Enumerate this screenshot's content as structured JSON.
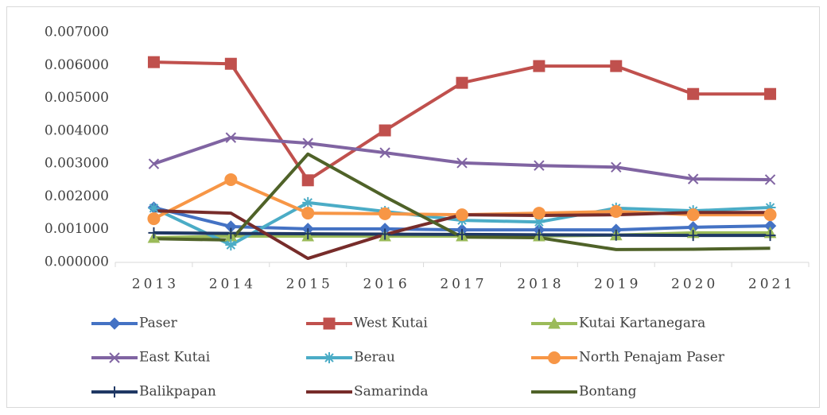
{
  "chart_data": {
    "type": "line",
    "categories": [
      "2013",
      "2014",
      "2015",
      "2016",
      "2017",
      "2018",
      "2019",
      "2020",
      "2021"
    ],
    "ylim": [
      0,
      0.007
    ],
    "yticks": [
      {
        "value": 0,
        "label": "0.000000"
      },
      {
        "value": 0.001,
        "label": "0.001000"
      },
      {
        "value": 0.002,
        "label": "0.002000"
      },
      {
        "value": 0.003,
        "label": "0.003000"
      },
      {
        "value": 0.004,
        "label": "0.004000"
      },
      {
        "value": 0.005,
        "label": "0.005000"
      },
      {
        "value": 0.006,
        "label": "0.006000"
      },
      {
        "value": 0.007,
        "label": "0.007000"
      }
    ],
    "grid": false,
    "legend": "bottom",
    "series": [
      {
        "name": "Paser",
        "color": "#4472c4",
        "marker": "diamond",
        "values": [
          0.00167,
          0.00109,
          0.00102,
          0.00102,
          0.00099,
          0.00099,
          0.00099,
          0.00107,
          0.00111
        ]
      },
      {
        "name": "West Kutai",
        "color": "#c0504d",
        "marker": "square",
        "values": [
          0.0061,
          0.00605,
          0.0025,
          0.00402,
          0.00547,
          0.00598,
          0.00598,
          0.00513,
          0.00513
        ]
      },
      {
        "name": "Kutai Kartanegara",
        "color": "#9bbb59",
        "marker": "triangle",
        "values": [
          0.00075,
          0.0008,
          0.0008,
          0.0008,
          0.0008,
          0.0008,
          0.00083,
          0.0009,
          0.0009
        ]
      },
      {
        "name": "East Kutai",
        "color": "#8064a2",
        "marker": "x",
        "values": [
          0.003,
          0.0038,
          0.00363,
          0.00334,
          0.00303,
          0.00295,
          0.0029,
          0.00254,
          0.00252
        ]
      },
      {
        "name": "Berau",
        "color": "#4bacc6",
        "marker": "star",
        "values": [
          0.00165,
          0.00053,
          0.00182,
          0.00155,
          0.00128,
          0.00123,
          0.00165,
          0.00157,
          0.00167
        ]
      },
      {
        "name": "North Penajam Paser",
        "color": "#f79646",
        "marker": "circle",
        "values": [
          0.00133,
          0.00252,
          0.0015,
          0.00148,
          0.00145,
          0.0015,
          0.00155,
          0.00145,
          0.00145
        ]
      },
      {
        "name": "Balikpapan",
        "color": "#1f3864",
        "marker": "plus",
        "values": [
          0.0009,
          0.00088,
          0.00087,
          0.00086,
          0.00085,
          0.00084,
          0.00083,
          0.00082,
          0.00082
        ]
      },
      {
        "name": "Samarinda",
        "color": "#772c2a",
        "marker": "none",
        "values": [
          0.00157,
          0.0015,
          0.00012,
          0.00085,
          0.00145,
          0.00143,
          0.00145,
          0.00152,
          0.00152
        ]
      },
      {
        "name": "Bontang",
        "color": "#4f6228",
        "marker": "none",
        "values": [
          0.00072,
          0.00068,
          0.0033,
          0.002,
          0.00077,
          0.00075,
          0.00039,
          0.0004,
          0.00043
        ]
      }
    ]
  }
}
